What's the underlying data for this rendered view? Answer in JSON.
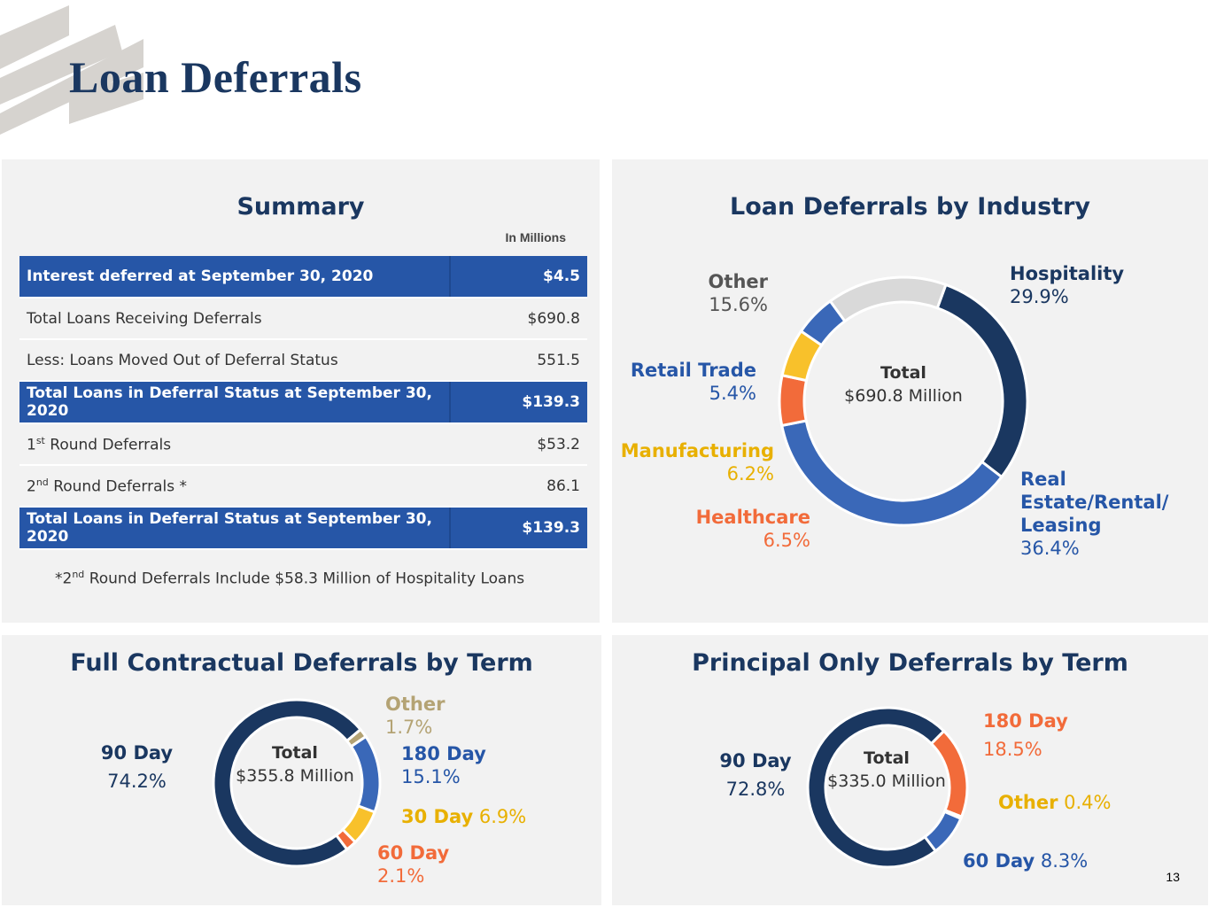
{
  "page": {
    "title": "Loan Deferrals",
    "page_number": "13"
  },
  "colors": {
    "navy": "#1a3760",
    "blue": "#2656a7",
    "mid_blue": "#3a68b8",
    "gray": "#d9d9d9",
    "yellow": "#f8c12b",
    "orange": "#f26b3a",
    "tan": "#b4a374"
  },
  "summary": {
    "title": "Summary",
    "unit_note": "In Millions",
    "rows": [
      {
        "label": "Interest deferred at September 30, 2020",
        "value": "$4.5"
      },
      {
        "label": "Total Loans Receiving Deferrals",
        "value": "$690.8"
      },
      {
        "label": "Less: Loans Moved Out of Deferral Status",
        "value": "551.5"
      },
      {
        "label": "Total Loans in Deferral Status at September 30, 2020",
        "value": "$139.3"
      },
      {
        "prefix": "1",
        "sup": "st",
        "label": " Round Deferrals",
        "value": "$53.2"
      },
      {
        "prefix": "2",
        "sup": "nd",
        "label": " Round Deferrals *",
        "value": "86.1"
      },
      {
        "label": "Total Loans in Deferral Status at September 30, 2020",
        "value": "$139.3"
      }
    ],
    "footnote": {
      "prefix": "*2",
      "sup": "nd",
      "text": " Round Deferrals Include $58.3 Million of Hospitality Loans"
    }
  },
  "chart_data": [
    {
      "type": "pie",
      "title": "Loan Deferrals by Industry",
      "center_title": "Total",
      "center_value": "$690.8 Million",
      "categories": [
        "Hospitality",
        "Real Estate/Rental/ Leasing",
        "Healthcare",
        "Manufacturing",
        "Retail Trade",
        "Other"
      ],
      "values": [
        29.9,
        36.4,
        6.5,
        6.2,
        5.4,
        15.6
      ],
      "labels": [
        "29.9%",
        "36.4%",
        "6.5%",
        "6.2%",
        "5.4%",
        "15.6%"
      ],
      "label_lines": [
        [
          "Hospitality"
        ],
        [
          "Real",
          "Estate/Rental/",
          "Leasing"
        ],
        [
          "Healthcare"
        ],
        [
          "Manufacturing"
        ],
        [
          "Retail Trade"
        ],
        [
          "Other"
        ]
      ],
      "colors": [
        "#1a3760",
        "#3a68b8",
        "#f26b3a",
        "#f8c12b",
        "#3a68b8",
        "#d9d9d9"
      ],
      "start_angle": 20
    },
    {
      "type": "pie",
      "title": "Full Contractual Deferrals by Term",
      "center_title": "Total",
      "center_value": "$355.8 Million",
      "categories": [
        "Other",
        "180 Day",
        "30 Day",
        "60 Day",
        "90 Day"
      ],
      "values": [
        1.7,
        15.1,
        6.9,
        2.1,
        74.2
      ],
      "labels": [
        "1.7%",
        "15.1%",
        "6.9%",
        "2.1%",
        "74.2%"
      ],
      "colors": [
        "#b4a374",
        "#3a68b8",
        "#f8c12b",
        "#f26b3a",
        "#1a3760"
      ],
      "start_angle": 50
    },
    {
      "type": "pie",
      "title": "Principal Only Deferrals by Term",
      "center_title": "Total",
      "center_value": "$335.0 Million",
      "categories": [
        "180 Day",
        "Other",
        "60 Day",
        "90 Day"
      ],
      "values": [
        18.5,
        0.4,
        8.3,
        72.8
      ],
      "labels": [
        "18.5%",
        "0.4%",
        "8.3%",
        "72.8%"
      ],
      "colors": [
        "#f26b3a",
        "#f26b3a",
        "#3a68b8",
        "#1a3760"
      ],
      "start_angle": 45
    }
  ]
}
